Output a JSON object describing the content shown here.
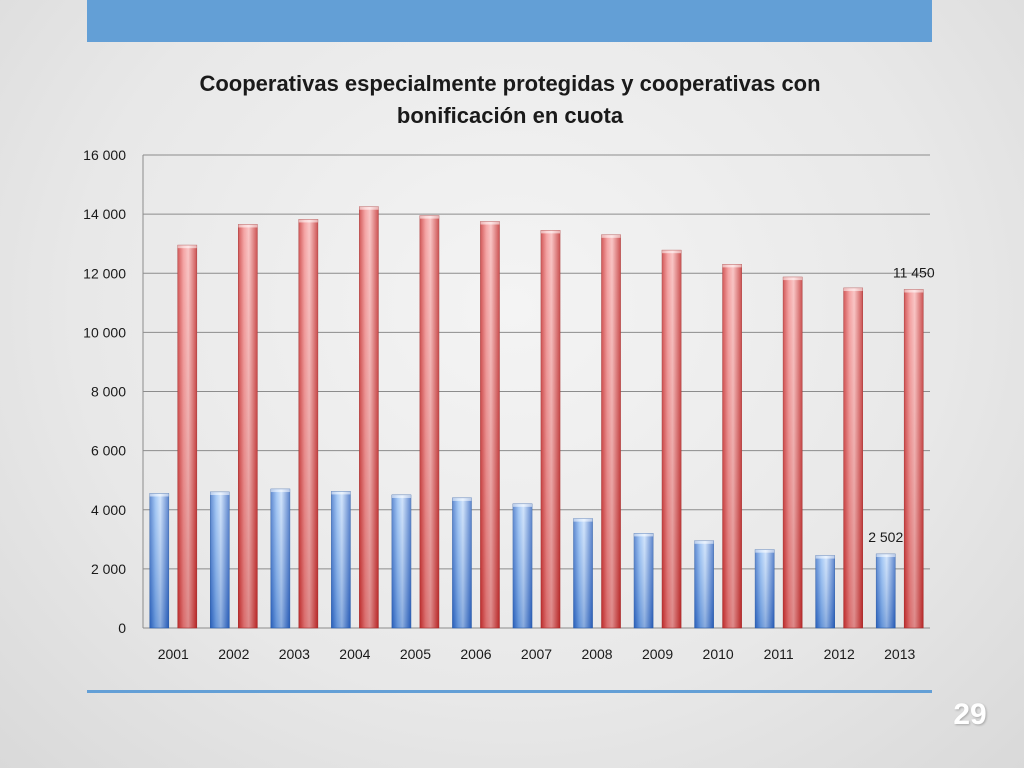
{
  "slide": {
    "page_number": "29",
    "accent_color": "#639fd6"
  },
  "chart_data": {
    "type": "bar",
    "title_line1": "Cooperativas especialmente protegidas y cooperativas con",
    "title_line2": "bonificación en cuota",
    "categories": [
      "2001",
      "2002",
      "2003",
      "2004",
      "2005",
      "2006",
      "2007",
      "2008",
      "2009",
      "2010",
      "2011",
      "2012",
      "2013"
    ],
    "series": [
      {
        "color": "#4f86d6",
        "values": [
          4550,
          4600,
          4700,
          4620,
          4500,
          4400,
          4200,
          3700,
          3200,
          2950,
          2650,
          2450,
          2502
        ]
      },
      {
        "color": "#dd4b4b",
        "values": [
          12950,
          13650,
          13820,
          14250,
          13950,
          13750,
          13450,
          13300,
          12780,
          12300,
          11870,
          11500,
          11450
        ]
      }
    ],
    "ylim": [
      0,
      16000
    ],
    "yticks": [
      0,
      2000,
      4000,
      6000,
      8000,
      10000,
      12000,
      14000,
      16000
    ],
    "ytick_labels": [
      "0",
      "2 000",
      "4 000",
      "6 000",
      "8 000",
      "10 000",
      "12 000",
      "14 000",
      "16 000"
    ],
    "grid": true,
    "data_labels": [
      {
        "series": 0,
        "index": 12,
        "text": "2 502"
      },
      {
        "series": 1,
        "index": 12,
        "text": "11 450"
      }
    ]
  }
}
